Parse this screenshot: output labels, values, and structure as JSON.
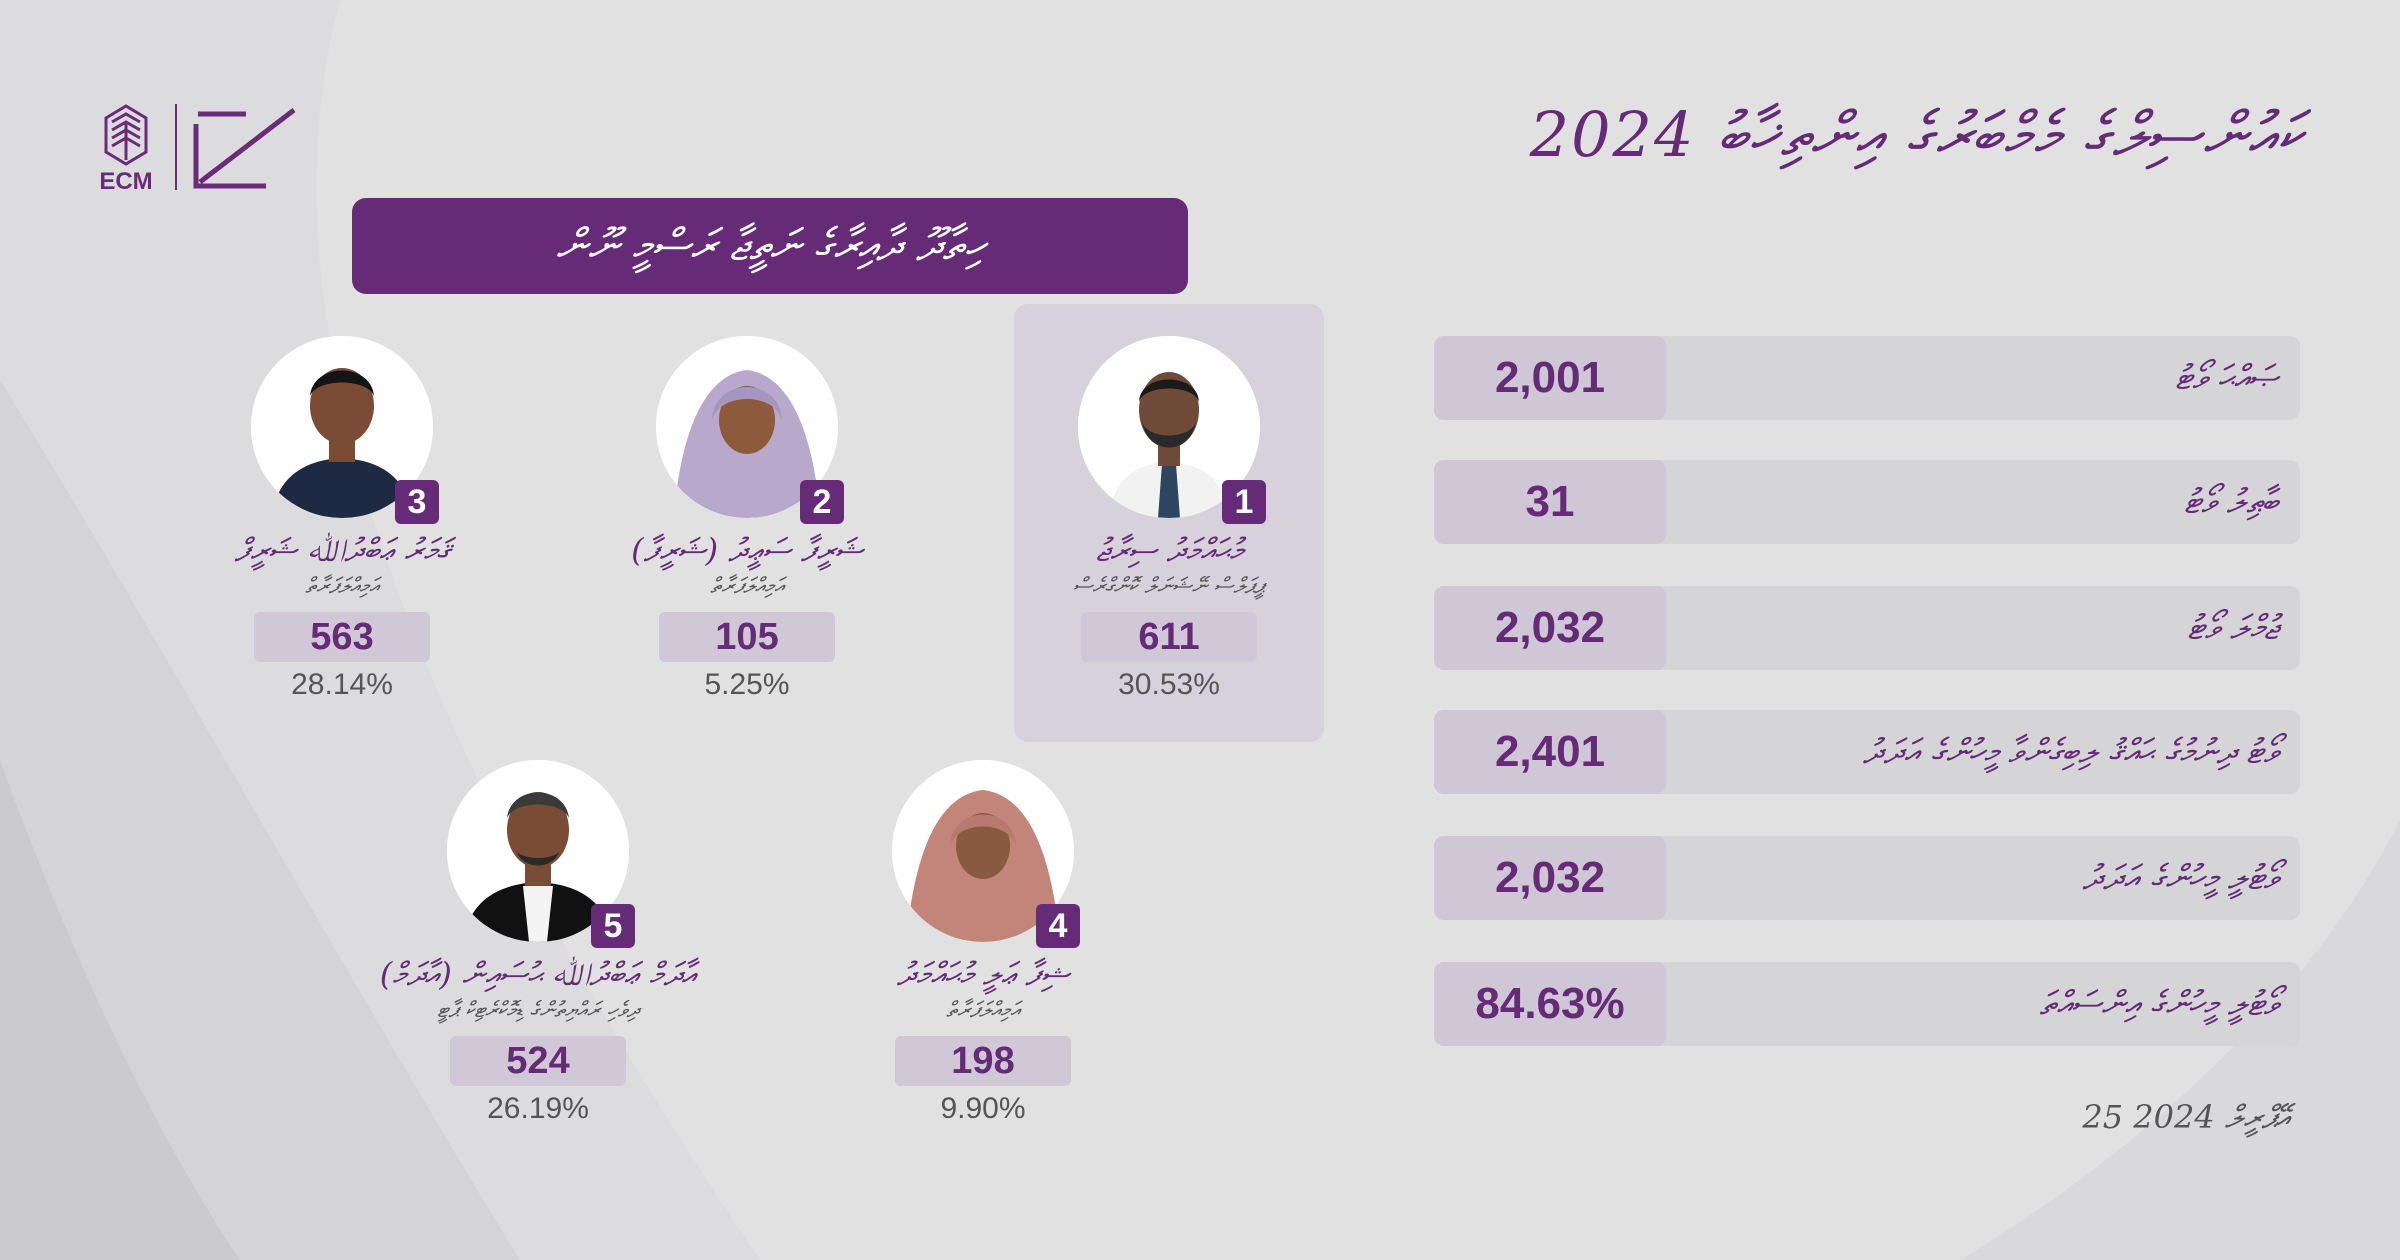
{
  "brand": {
    "logo_text": "ECM",
    "accent": "#652b77",
    "background": "#e1e1e2"
  },
  "header": {
    "title": "ކައުންސިލްގެ މެމްބަރުގެ އިންތިޚާބު 2024",
    "banner": "ހިތާދޫ ދާއިރާގެ ނަތީޖާ ރަސްމީ ނޫން"
  },
  "candidates": [
    {
      "number": "1",
      "name": "މުޙައްމަދު ސިރާޖު",
      "party": "ޕީޕަލްސް ނޭޝަނަލް ކޮންގްރެސް",
      "votes": "611",
      "percent": "30.53%",
      "winner": true
    },
    {
      "number": "2",
      "name": "ޝަރީފާ ސަޢީދު (ޝަރީފާ)",
      "party": "އަމިއްލަފަރާތް",
      "votes": "105",
      "percent": "5.25%",
      "winner": false
    },
    {
      "number": "3",
      "name": "ޤަމަރު ޢަބްދުﷲ ޝަރީފް",
      "party": "އަމިއްލަފަރާތް",
      "votes": "563",
      "percent": "28.14%",
      "winner": false
    },
    {
      "number": "4",
      "name": "ޝިފާ ޢަލީ މުޙައްމަދު",
      "party": "އަމިއްލަފަރާތް",
      "votes": "198",
      "percent": "9.90%",
      "winner": false
    },
    {
      "number": "5",
      "name": "އާދަމް ޢަބްދުﷲ ޙުސައިން (އާދަމް)",
      "party": "ދިވެހި ރައްޔިތުންގެ ޑިމޮކްރެޓިކް ޕާޓީ",
      "votes": "524",
      "percent": "26.19%",
      "winner": false
    }
  ],
  "stats": [
    {
      "label": "ޞައްޙަ ވޯޓު",
      "value": "2,001"
    },
    {
      "label": "ބާޠިލު ވޯޓު",
      "value": "31"
    },
    {
      "label": "ޖުމްލަ ވޯޓު",
      "value": "2,032"
    },
    {
      "label": "ވޯޓު ދިނުމުގެ ޙައްޤު ލިބިގެންވާ މީހުންގެ އަދަދު",
      "value": "2,401"
    },
    {
      "label": "ވޯޓުލީ މީހުންގެ އަދަދު",
      "value": "2,032"
    },
    {
      "label": "ވޯޓުލީ މީހުންގެ އިންސައްތަ",
      "value": "84.63%"
    }
  ],
  "date": "25 އޭޕްރީލް 2024",
  "icons": [
    "ecm-logo-icon",
    "ballot-box-icon"
  ]
}
